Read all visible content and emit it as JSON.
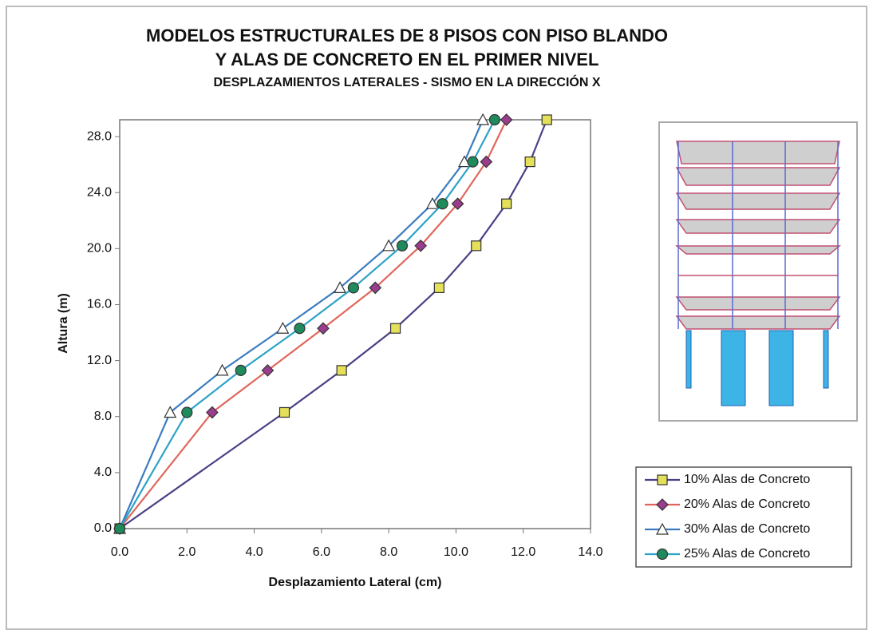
{
  "chart_data": {
    "type": "line",
    "title": "MODELOS ESTRUCTURALES DE 8 PISOS CON PISO BLANDO",
    "title_line2": "Y ALAS DE CONCRETO EN EL PRIMER NIVEL",
    "subtitle": "DESPLAZAMIENTOS LATERALES - SISMO EN LA DIRECCIÓN X",
    "x_label": "Desplazamiento Lateral (cm)",
    "y_label": "Altura (m)",
    "xlim": [
      0,
      14
    ],
    "ylim": [
      0,
      29.2
    ],
    "xticks": [
      {
        "value": 0,
        "label": "0.0"
      },
      {
        "value": 2,
        "label": "2.0"
      },
      {
        "value": 4,
        "label": "4.0"
      },
      {
        "value": 6,
        "label": "6.0"
      },
      {
        "value": 8,
        "label": "8.0"
      },
      {
        "value": 10,
        "label": "10.0"
      },
      {
        "value": 12,
        "label": "12.0"
      },
      {
        "value": 14,
        "label": "14.0"
      }
    ],
    "yticks": [
      {
        "value": 0,
        "label": "0.0"
      },
      {
        "value": 4,
        "label": "4.0"
      },
      {
        "value": 8,
        "label": "8.0"
      },
      {
        "value": 12,
        "label": "12.0"
      },
      {
        "value": 16,
        "label": "16.0"
      },
      {
        "value": 20,
        "label": "20.0"
      },
      {
        "value": 24,
        "label": "24.0"
      },
      {
        "value": 28,
        "label": "28.0"
      }
    ],
    "series": [
      {
        "name": "10% Alas de Concreto",
        "color": "#4b3f86",
        "marker": "square",
        "marker_color": "#e4e05a",
        "x": [
          0,
          4.9,
          6.6,
          8.2,
          9.5,
          10.6,
          11.5,
          12.2,
          12.7
        ],
        "values": [
          0,
          8.3,
          11.3,
          14.3,
          17.2,
          20.2,
          23.2,
          26.2,
          29.2
        ]
      },
      {
        "name": "20% Alas de Concreto",
        "color": "#e0665c",
        "marker": "diamond",
        "marker_color": "#9a3d8e",
        "x": [
          0,
          2.75,
          4.4,
          6.05,
          7.6,
          8.95,
          10.05,
          10.9,
          11.5
        ],
        "values": [
          0,
          8.3,
          11.3,
          14.3,
          17.2,
          20.2,
          23.2,
          26.2,
          29.2
        ]
      },
      {
        "name": "30% Alas de Concreto",
        "color": "#3b7cc0",
        "marker": "triangle",
        "marker_color": "#ffffff",
        "x": [
          0,
          1.5,
          3.05,
          4.85,
          6.55,
          8.0,
          9.3,
          10.25,
          10.8
        ],
        "values": [
          0,
          8.3,
          11.3,
          14.3,
          17.2,
          20.2,
          23.2,
          26.2,
          29.2
        ]
      },
      {
        "name": "25% Alas de Concreto",
        "color": "#2ba2c6",
        "marker": "circle",
        "marker_color": "#1f8a5c",
        "x": [
          0,
          2.0,
          3.6,
          5.35,
          6.95,
          8.4,
          9.6,
          10.5,
          11.15
        ],
        "values": [
          0,
          8.3,
          11.3,
          14.3,
          17.2,
          20.2,
          23.2,
          26.2,
          29.2
        ]
      }
    ]
  }
}
